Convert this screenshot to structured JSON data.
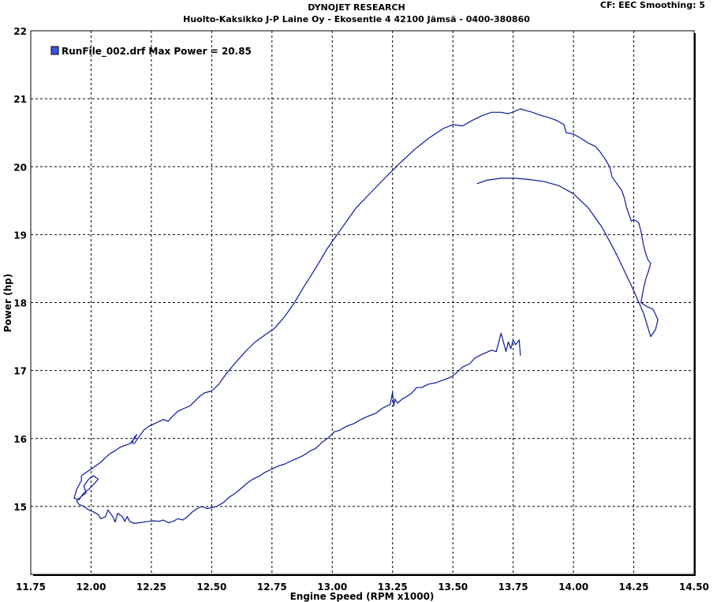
{
  "header": {
    "title": "DYNOJET RESEARCH",
    "subtitle": "Huolto-Kaksikko J-P Laine Oy - Ekosentie 4 42100 Jämsä - 0400-380860",
    "correction": "CF: EEC  Smoothing: 5"
  },
  "chart_data": {
    "type": "line",
    "xlabel": "Engine Speed (RPM x1000)",
    "ylabel": "Power (hp)",
    "xlim": [
      11.75,
      14.5
    ],
    "ylim": [
      14.0,
      22.0
    ],
    "xticks": [
      "11.75",
      "12.00",
      "12.25",
      "12.50",
      "12.75",
      "13.00",
      "13.25",
      "13.50",
      "13.75",
      "14.00",
      "14.25",
      "14.50"
    ],
    "yticks": [
      "15",
      "16",
      "17",
      "18",
      "19",
      "20",
      "21",
      "22"
    ],
    "grid": true,
    "legend_position": "top-left",
    "series": [
      {
        "name": "RunFile_002.drf Max Power = 20.85",
        "color": "#0a1a9c",
        "points": [
          [
            13.78,
            17.22
          ],
          [
            13.775,
            17.45
          ],
          [
            13.76,
            17.38
          ],
          [
            13.75,
            17.45
          ],
          [
            13.74,
            17.32
          ],
          [
            13.73,
            17.42
          ],
          [
            13.72,
            17.28
          ],
          [
            13.7,
            17.55
          ],
          [
            13.68,
            17.28
          ],
          [
            13.66,
            17.3
          ],
          [
            13.63,
            17.25
          ],
          [
            13.61,
            17.22
          ],
          [
            13.59,
            17.18
          ],
          [
            13.57,
            17.1
          ],
          [
            13.54,
            17.05
          ],
          [
            13.51,
            16.95
          ],
          [
            13.49,
            16.9
          ],
          [
            13.46,
            16.86
          ],
          [
            13.43,
            16.82
          ],
          [
            13.4,
            16.8
          ],
          [
            13.37,
            16.75
          ],
          [
            13.35,
            16.75
          ],
          [
            13.33,
            16.67
          ],
          [
            13.31,
            16.62
          ],
          [
            13.29,
            16.58
          ],
          [
            13.27,
            16.52
          ],
          [
            13.26,
            16.58
          ],
          [
            13.255,
            16.48
          ],
          [
            13.25,
            16.68
          ],
          [
            13.24,
            16.5
          ],
          [
            13.21,
            16.45
          ],
          [
            13.18,
            16.37
          ],
          [
            13.15,
            16.33
          ],
          [
            13.12,
            16.28
          ],
          [
            13.09,
            16.22
          ],
          [
            13.06,
            16.18
          ],
          [
            13.03,
            16.12
          ],
          [
            13.01,
            16.1
          ],
          [
            12.98,
            16.0
          ],
          [
            12.96,
            15.95
          ],
          [
            12.93,
            15.85
          ],
          [
            12.91,
            15.82
          ],
          [
            12.88,
            15.75
          ],
          [
            12.85,
            15.7
          ],
          [
            12.83,
            15.67
          ],
          [
            12.8,
            15.62
          ],
          [
            12.78,
            15.6
          ],
          [
            12.75,
            15.55
          ],
          [
            12.72,
            15.5
          ],
          [
            12.7,
            15.45
          ],
          [
            12.67,
            15.4
          ],
          [
            12.65,
            15.35
          ],
          [
            12.62,
            15.26
          ],
          [
            12.6,
            15.2
          ],
          [
            12.57,
            15.13
          ],
          [
            12.55,
            15.06
          ],
          [
            12.52,
            15.0
          ],
          [
            12.5,
            14.98
          ],
          [
            12.48,
            14.97
          ],
          [
            12.46,
            15.0
          ],
          [
            12.44,
            14.97
          ],
          [
            12.42,
            14.92
          ],
          [
            12.4,
            14.85
          ],
          [
            12.38,
            14.8
          ],
          [
            12.36,
            14.82
          ],
          [
            12.34,
            14.78
          ],
          [
            12.32,
            14.76
          ],
          [
            12.3,
            14.8
          ],
          [
            12.28,
            14.78
          ],
          [
            12.26,
            14.79
          ],
          [
            12.24,
            14.78
          ],
          [
            12.22,
            14.77
          ],
          [
            12.2,
            14.76
          ],
          [
            12.18,
            14.75
          ],
          [
            12.16,
            14.78
          ],
          [
            12.15,
            14.85
          ],
          [
            12.14,
            14.78
          ],
          [
            12.13,
            14.85
          ],
          [
            12.11,
            14.9
          ],
          [
            12.1,
            14.77
          ],
          [
            12.09,
            14.85
          ],
          [
            12.07,
            14.95
          ],
          [
            12.06,
            14.85
          ],
          [
            12.04,
            14.82
          ],
          [
            12.03,
            14.88
          ],
          [
            12.01,
            14.92
          ],
          [
            11.99,
            14.95
          ],
          [
            11.97,
            15.0
          ],
          [
            11.95,
            15.03
          ],
          [
            11.94,
            15.08
          ],
          [
            11.96,
            15.15
          ],
          [
            11.98,
            15.2
          ],
          [
            11.97,
            15.3
          ],
          [
            11.99,
            15.4
          ],
          [
            12.01,
            15.45
          ],
          [
            12.03,
            15.4
          ],
          [
            12.01,
            15.32
          ],
          [
            11.99,
            15.25
          ],
          [
            11.97,
            15.2
          ],
          [
            11.95,
            15.1
          ],
          [
            11.93,
            15.12
          ],
          [
            11.94,
            15.25
          ],
          [
            11.96,
            15.38
          ],
          [
            11.96,
            15.45
          ],
          [
            11.98,
            15.5
          ],
          [
            12.0,
            15.55
          ],
          [
            12.02,
            15.6
          ],
          [
            12.04,
            15.65
          ],
          [
            12.06,
            15.72
          ],
          [
            12.08,
            15.78
          ],
          [
            12.1,
            15.82
          ],
          [
            12.12,
            15.87
          ],
          [
            12.14,
            15.9
          ],
          [
            12.16,
            15.92
          ],
          [
            12.18,
            16.0
          ],
          [
            12.19,
            16.06
          ],
          [
            12.18,
            16.02
          ],
          [
            12.17,
            15.93
          ],
          [
            12.18,
            15.93
          ],
          [
            12.2,
            16.03
          ],
          [
            12.22,
            16.13
          ],
          [
            12.24,
            16.18
          ],
          [
            12.27,
            16.23
          ],
          [
            12.3,
            16.28
          ],
          [
            12.32,
            16.25
          ],
          [
            12.33,
            16.3
          ],
          [
            12.36,
            16.4
          ],
          [
            12.39,
            16.45
          ],
          [
            12.41,
            16.48
          ],
          [
            12.43,
            16.55
          ],
          [
            12.45,
            16.62
          ],
          [
            12.47,
            16.67
          ],
          [
            12.5,
            16.7
          ],
          [
            12.53,
            16.8
          ],
          [
            12.56,
            16.95
          ],
          [
            12.6,
            17.12
          ],
          [
            12.64,
            17.28
          ],
          [
            12.68,
            17.42
          ],
          [
            12.72,
            17.52
          ],
          [
            12.76,
            17.62
          ],
          [
            12.8,
            17.78
          ],
          [
            12.84,
            17.98
          ],
          [
            12.88,
            18.22
          ],
          [
            12.93,
            18.5
          ],
          [
            12.98,
            18.8
          ],
          [
            13.04,
            19.1
          ],
          [
            13.1,
            19.4
          ],
          [
            13.16,
            19.62
          ],
          [
            13.22,
            19.84
          ],
          [
            13.28,
            20.05
          ],
          [
            13.34,
            20.25
          ],
          [
            13.4,
            20.42
          ],
          [
            13.46,
            20.56
          ],
          [
            13.5,
            20.62
          ],
          [
            13.54,
            20.6
          ],
          [
            13.58,
            20.68
          ],
          [
            13.62,
            20.75
          ],
          [
            13.66,
            20.8
          ],
          [
            13.7,
            20.8
          ],
          [
            13.73,
            20.78
          ],
          [
            13.76,
            20.82
          ],
          [
            13.78,
            20.85
          ],
          [
            13.8,
            20.83
          ],
          [
            13.83,
            20.8
          ],
          [
            13.86,
            20.76
          ],
          [
            13.9,
            20.72
          ],
          [
            13.93,
            20.68
          ],
          [
            13.96,
            20.62
          ],
          [
            13.97,
            20.5
          ],
          [
            14.0,
            20.48
          ],
          [
            14.03,
            20.42
          ],
          [
            14.06,
            20.35
          ],
          [
            14.09,
            20.3
          ],
          [
            14.11,
            20.22
          ],
          [
            14.13,
            20.12
          ],
          [
            14.15,
            20.0
          ],
          [
            14.16,
            19.85
          ],
          [
            14.18,
            19.75
          ],
          [
            14.2,
            19.65
          ],
          [
            14.21,
            19.55
          ],
          [
            14.22,
            19.4
          ],
          [
            14.23,
            19.3
          ],
          [
            14.24,
            19.2
          ],
          [
            14.25,
            19.22
          ],
          [
            14.27,
            19.18
          ],
          [
            14.28,
            19.05
          ],
          [
            14.29,
            18.85
          ],
          [
            14.3,
            18.72
          ],
          [
            14.31,
            18.62
          ],
          [
            14.32,
            18.58
          ],
          [
            14.31,
            18.45
          ],
          [
            14.3,
            18.35
          ],
          [
            14.29,
            18.2
          ],
          [
            14.28,
            18.0
          ],
          [
            14.3,
            17.95
          ],
          [
            14.33,
            17.9
          ],
          [
            14.35,
            17.75
          ],
          [
            14.34,
            17.6
          ],
          [
            14.32,
            17.5
          ],
          [
            14.29,
            17.85
          ],
          [
            14.24,
            18.25
          ],
          [
            14.18,
            18.7
          ],
          [
            14.12,
            19.1
          ],
          [
            14.06,
            19.4
          ],
          [
            14.0,
            19.6
          ],
          [
            13.94,
            19.72
          ],
          [
            13.88,
            19.78
          ],
          [
            13.82,
            19.81
          ],
          [
            13.76,
            19.83
          ],
          [
            13.7,
            19.83
          ],
          [
            13.64,
            19.8
          ],
          [
            13.6,
            19.75
          ]
        ]
      }
    ]
  }
}
